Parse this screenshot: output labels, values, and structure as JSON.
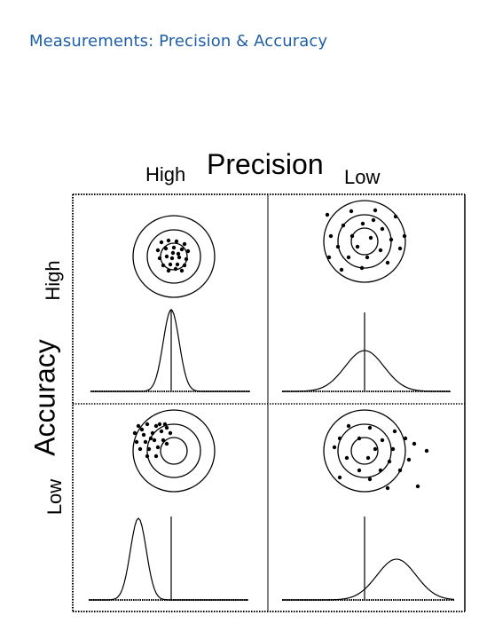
{
  "slide": {
    "title": "Measurements: Precision & Accuracy"
  },
  "diagram": {
    "column_axis_label": "Precision",
    "row_axis_label": "Accuracy",
    "column_labels": [
      "High",
      "Low"
    ],
    "row_labels": [
      "High",
      "Low"
    ],
    "panels": [
      {
        "precision": "High",
        "accuracy": "High",
        "spread": "tight",
        "offset": "centered"
      },
      {
        "precision": "Low",
        "accuracy": "High",
        "spread": "wide",
        "offset": "centered"
      },
      {
        "precision": "High",
        "accuracy": "Low",
        "spread": "tight",
        "offset": "off-center"
      },
      {
        "precision": "Low",
        "accuracy": "Low",
        "spread": "wide",
        "offset": "off-center"
      }
    ],
    "colors": {
      "ink": "#000000",
      "title": "#1f5fa8",
      "background": "#ffffff"
    }
  }
}
